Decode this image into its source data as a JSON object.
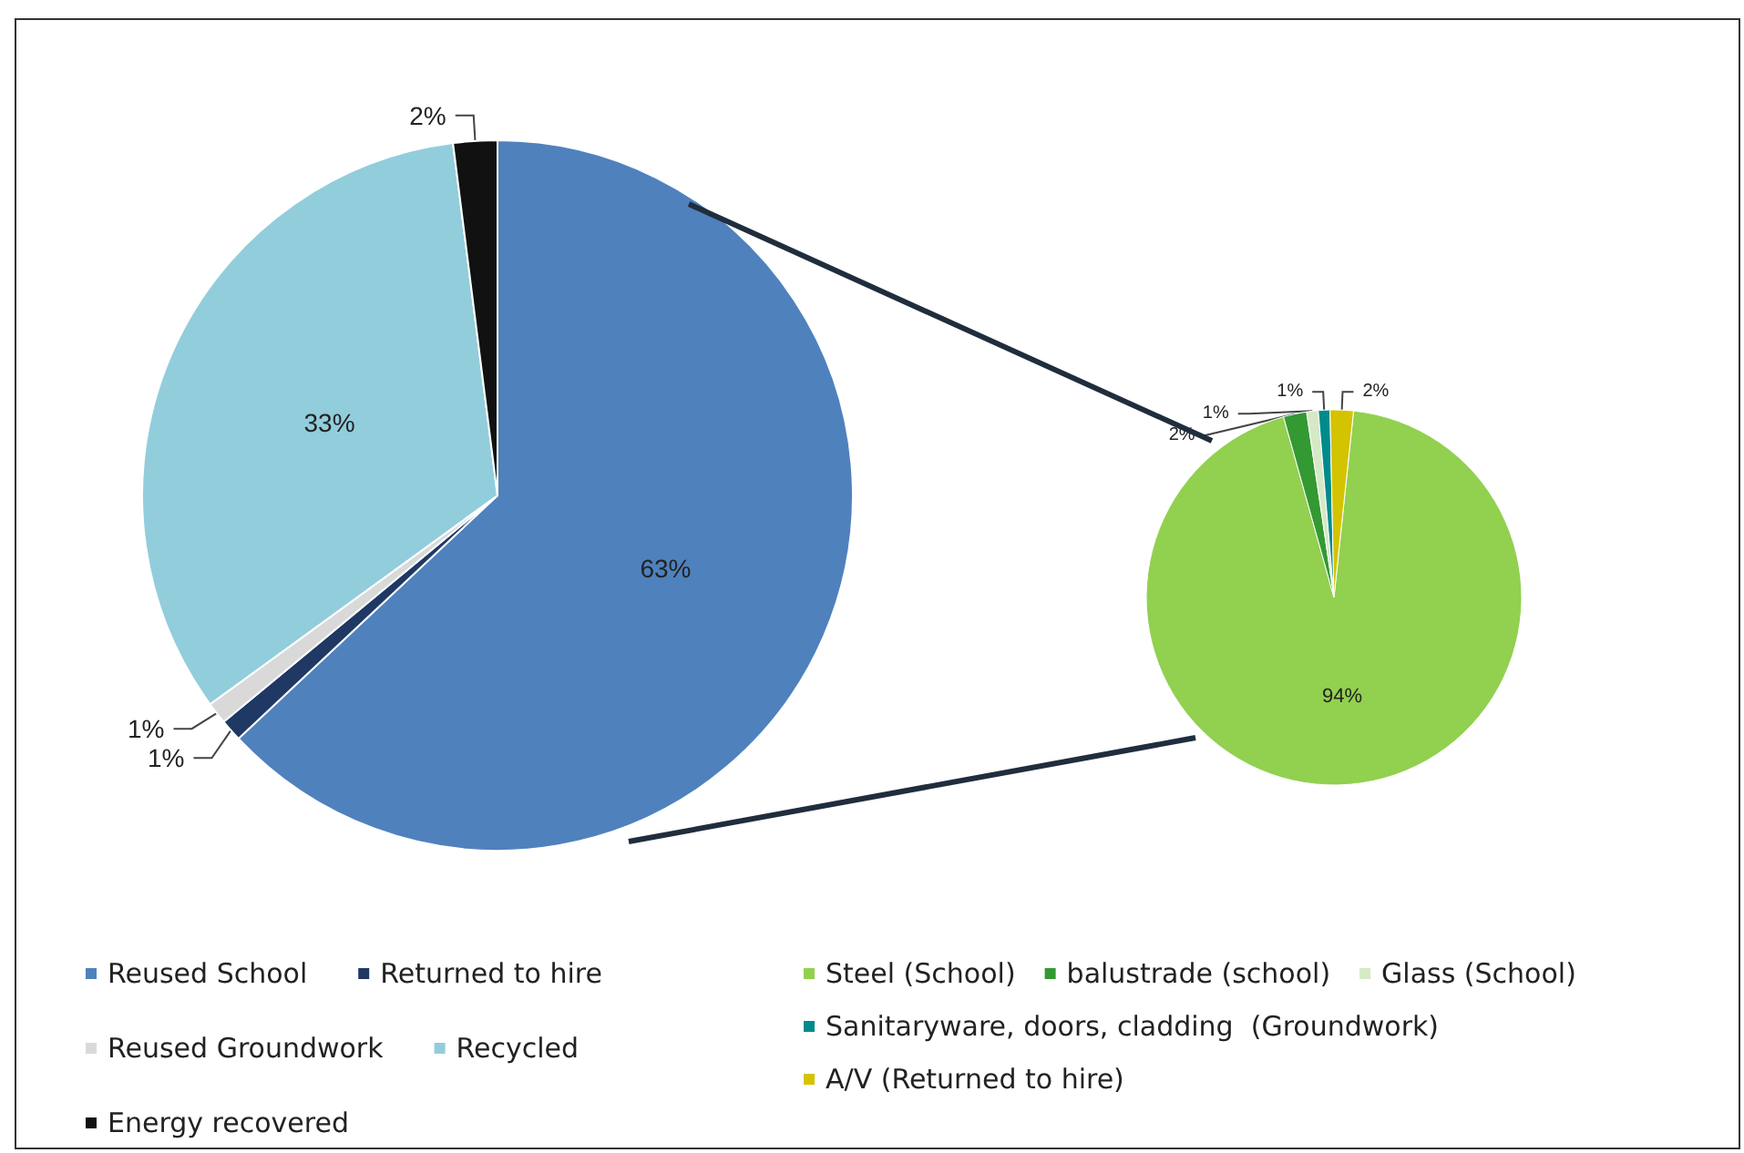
{
  "chart_data": [
    {
      "type": "pie",
      "categories": [
        "Reused School",
        "Returned to hire",
        "Reused Groundwork",
        "Recycled",
        "Energy recovered"
      ],
      "values": [
        63,
        1,
        1,
        33,
        2
      ],
      "colors": [
        "#4f81bd",
        "#1f3864",
        "#d9d9d9",
        "#92cddc",
        "#111111"
      ],
      "value_labels": [
        "63%",
        "1%",
        "1%",
        "33%",
        "2%"
      ],
      "legend": "bottom"
    },
    {
      "type": "pie",
      "categories": [
        "Steel (School)",
        "balustrade (school)",
        "Glass (School)",
        "Sanitaryware, doors, cladding  (Groundwork)",
        "A/V (Returned to hire)"
      ],
      "values": [
        94,
        2,
        1,
        1,
        2
      ],
      "colors": [
        "#92d050",
        "#339933",
        "#d6e9c6",
        "#008b8b",
        "#d4c300"
      ],
      "value_labels": [
        "94%",
        "2%",
        "1%",
        "1%",
        "2%"
      ],
      "legend": "bottom"
    }
  ]
}
